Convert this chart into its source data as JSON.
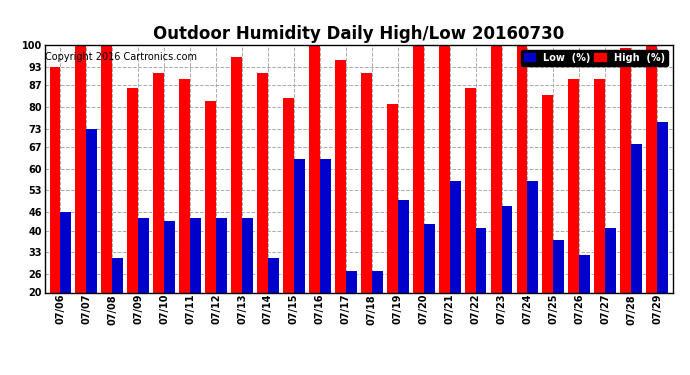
{
  "title": "Outdoor Humidity Daily High/Low 20160730",
  "copyright": "Copyright 2016 Cartronics.com",
  "categories": [
    "07/06",
    "07/07",
    "07/08",
    "07/09",
    "07/10",
    "07/11",
    "07/12",
    "07/13",
    "07/14",
    "07/15",
    "07/16",
    "07/17",
    "07/18",
    "07/19",
    "07/20",
    "07/21",
    "07/22",
    "07/23",
    "07/24",
    "07/25",
    "07/26",
    "07/27",
    "07/28",
    "07/29"
  ],
  "high_values": [
    93,
    100,
    100,
    86,
    91,
    89,
    82,
    96,
    91,
    83,
    100,
    95,
    91,
    81,
    100,
    100,
    86,
    100,
    100,
    84,
    89,
    89,
    99,
    100
  ],
  "low_values": [
    46,
    73,
    31,
    44,
    43,
    44,
    44,
    44,
    31,
    63,
    63,
    27,
    27,
    50,
    42,
    56,
    41,
    48,
    56,
    37,
    32,
    41,
    68,
    75
  ],
  "bar_color_high": "#ff0000",
  "bar_color_low": "#0000cc",
  "background_color": "#ffffff",
  "grid_color": "#aaaaaa",
  "title_fontsize": 12,
  "copyright_fontsize": 7,
  "tick_fontsize": 7,
  "legend_low_label": "Low  (%)",
  "legend_high_label": "High  (%)",
  "ylim_min": 20,
  "ylim_max": 100,
  "yticks": [
    20,
    26,
    33,
    40,
    46,
    53,
    60,
    67,
    73,
    80,
    87,
    93,
    100
  ],
  "bar_bottom": 20
}
